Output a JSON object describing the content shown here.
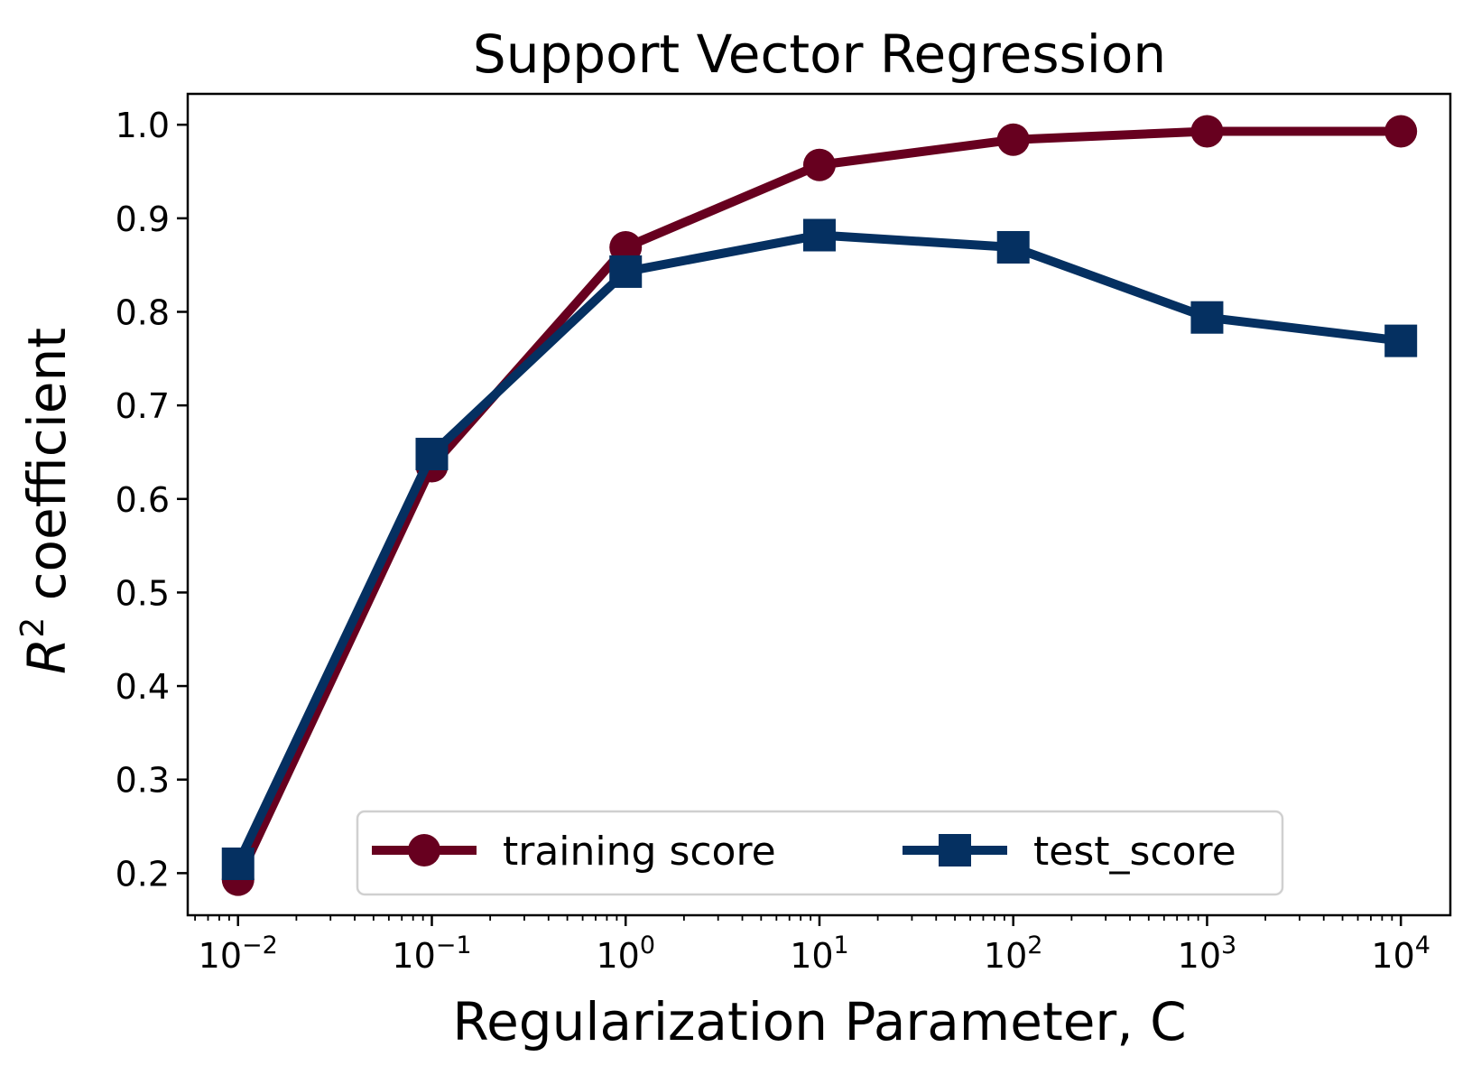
{
  "chart_data": {
    "type": "line",
    "title": "Support Vector Regression",
    "xlabel": "Regularization Parameter, C",
    "ylabel": {
      "base": "R",
      "sup": "2",
      "rest": " coefficient"
    },
    "xscale": "log",
    "x": [
      0.01,
      0.1,
      1,
      10,
      100,
      1000,
      10000
    ],
    "x_ticks": [
      {
        "value": 0.01,
        "base": "10",
        "exp": "−2"
      },
      {
        "value": 0.1,
        "base": "10",
        "exp": "−1"
      },
      {
        "value": 1,
        "base": "10",
        "exp": "0"
      },
      {
        "value": 10,
        "base": "10",
        "exp": "1"
      },
      {
        "value": 100,
        "base": "10",
        "exp": "2"
      },
      {
        "value": 1000,
        "base": "10",
        "exp": "3"
      },
      {
        "value": 10000,
        "base": "10",
        "exp": "4"
      }
    ],
    "xlim": [
      0.0055,
      18000
    ],
    "ylim": [
      0.155,
      1.033
    ],
    "y_ticks": [
      {
        "value": 0.2,
        "label": "0.2"
      },
      {
        "value": 0.3,
        "label": "0.3"
      },
      {
        "value": 0.4,
        "label": "0.4"
      },
      {
        "value": 0.5,
        "label": "0.5"
      },
      {
        "value": 0.6,
        "label": "0.6"
      },
      {
        "value": 0.7,
        "label": "0.7"
      },
      {
        "value": 0.8,
        "label": "0.8"
      },
      {
        "value": 0.9,
        "label": "0.9"
      },
      {
        "value": 1.0,
        "label": "1.0"
      }
    ],
    "series": [
      {
        "name": "training score",
        "marker": "circle",
        "color": "#67001f",
        "values": [
          0.193,
          0.635,
          0.869,
          0.957,
          0.984,
          0.993,
          0.993
        ]
      },
      {
        "name": "test_score",
        "marker": "square",
        "color": "#053061",
        "values": [
          0.21,
          0.648,
          0.843,
          0.882,
          0.869,
          0.794,
          0.769
        ]
      }
    ],
    "grid": false,
    "legend": {
      "placement": "lower-center",
      "columns": 2
    }
  }
}
